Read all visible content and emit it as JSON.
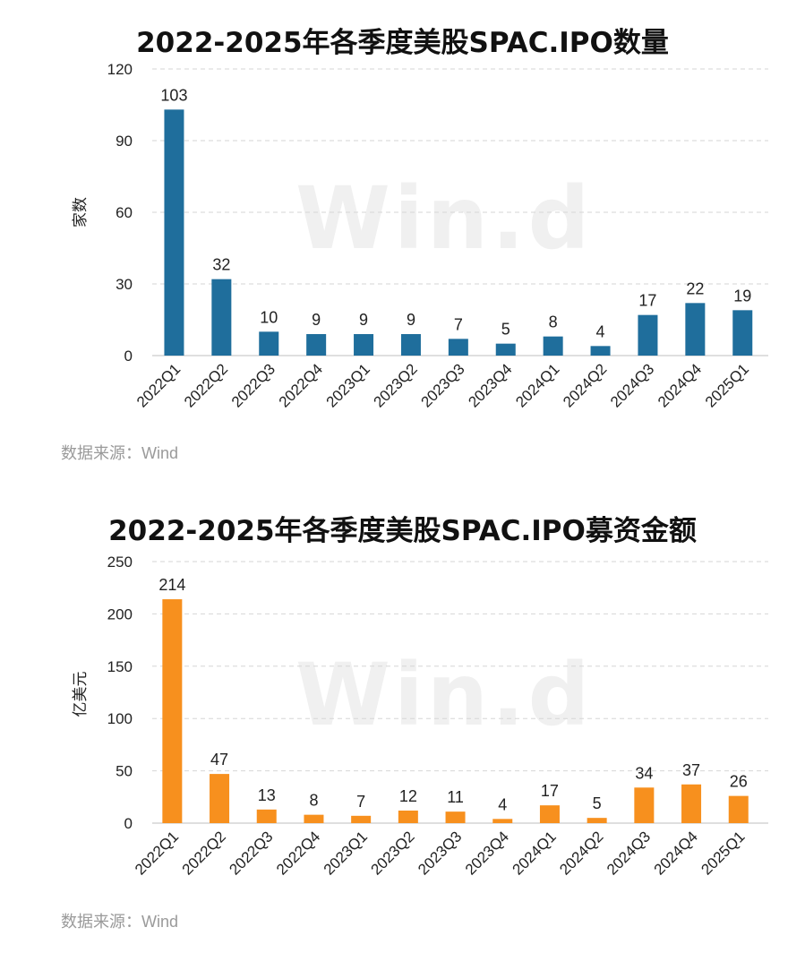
{
  "chart_data": [
    {
      "type": "bar",
      "title": "2022-2025年各季度美股SPAC.IPO数量",
      "xlabel": "",
      "ylabel": "家数",
      "ylim": [
        0,
        120
      ],
      "yticks": [
        "0",
        "30",
        "60",
        "90",
        "120"
      ],
      "grid": true,
      "categories": [
        "2022Q1",
        "2022Q2",
        "2022Q3",
        "2022Q4",
        "2023Q1",
        "2023Q2",
        "2023Q3",
        "2023Q4",
        "2024Q1",
        "2024Q2",
        "2024Q3",
        "2024Q4",
        "2025Q1"
      ],
      "values": [
        103,
        32,
        10,
        9,
        9,
        9,
        7,
        5,
        8,
        4,
        17,
        22,
        19
      ],
      "color": "#1f6e9c",
      "watermark": "Win.d",
      "source": "数据来源：Wind"
    },
    {
      "type": "bar",
      "title": "2022-2025年各季度美股SPAC.IPO募资金额",
      "xlabel": "",
      "ylabel": "亿美元",
      "ylim": [
        0,
        250
      ],
      "yticks": [
        "0",
        "50",
        "100",
        "150",
        "200",
        "250"
      ],
      "grid": true,
      "categories": [
        "2022Q1",
        "2022Q2",
        "2022Q3",
        "2022Q4",
        "2023Q1",
        "2023Q2",
        "2023Q3",
        "2023Q4",
        "2024Q1",
        "2024Q2",
        "2024Q3",
        "2024Q4",
        "2025Q1"
      ],
      "values": [
        214,
        47,
        13,
        8,
        7,
        12,
        11,
        4,
        17,
        5,
        34,
        37,
        26
      ],
      "color": "#f7901e",
      "watermark": "Win.d",
      "source": "数据来源：Wind"
    }
  ]
}
